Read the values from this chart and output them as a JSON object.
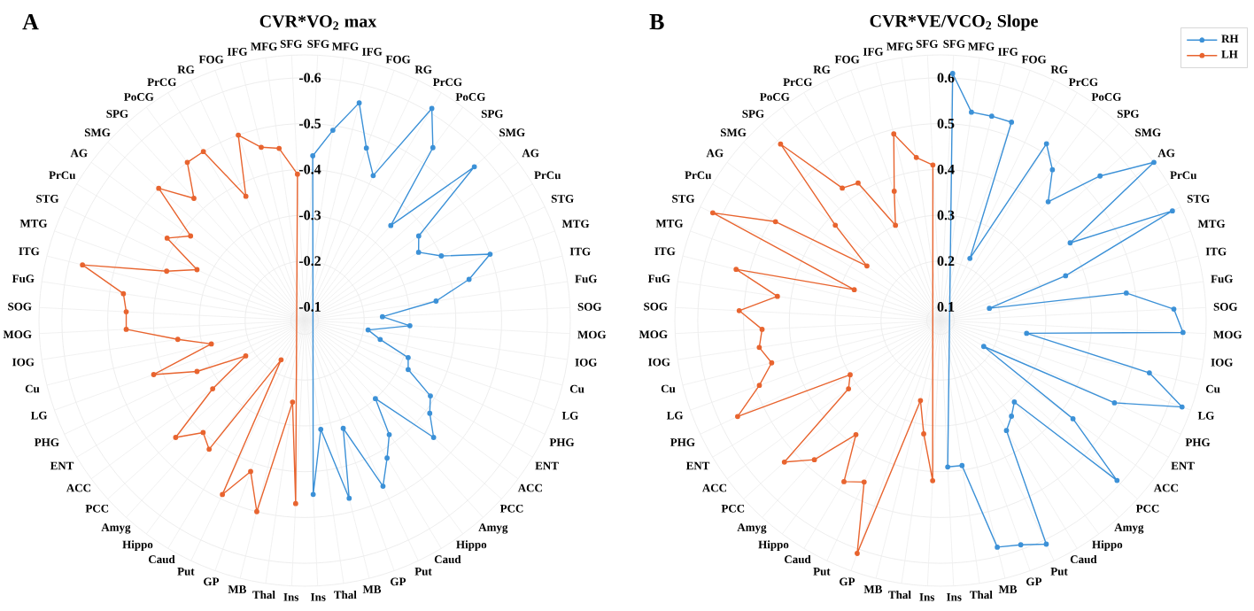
{
  "chart_data": [
    {
      "type": "radar",
      "title": "CVR*VO$_{2}$ max",
      "annotations": [
        "A"
      ],
      "categories": [
        "SFG",
        "MFG",
        "IFG",
        "FOG",
        "RG",
        "PrCG",
        "PoCG",
        "SPG",
        "SMG",
        "AG",
        "PrCu",
        "STG",
        "MTG",
        "ITG",
        "FuG",
        "SOG",
        "MOG",
        "IOG",
        "Cu",
        "LG",
        "PHG",
        "ENT",
        "ACC",
        "PCC",
        "Amyg",
        "Hippo",
        "Caud",
        "Put",
        "GP",
        "MB",
        "Thal",
        "Ins",
        "Ins",
        "Thal",
        "MB",
        "GP",
        "Put",
        "Caud",
        "Hippo",
        "Amyg",
        "PCC",
        "ACC",
        "ENT",
        "PHG",
        "LG",
        "Cu",
        "IOG",
        "MOG",
        "SOG",
        "FuG",
        "ITG",
        "MTG",
        "STG",
        "PrCu",
        "AG",
        "SMG",
        "SPG",
        "PoCG",
        "PrCG",
        "RG",
        "FOG",
        "IFG",
        "MFG",
        "SFG"
      ],
      "series": [
        {
          "color": "#3c91d7",
          "values": [
            -0.43,
            -0.49,
            -0.56,
            -0.47,
            -0.42,
            -0.61,
            -0.54,
            -0.35,
            -0.57,
            -0.38,
            -0.36,
            -0.4,
            -0.5,
            -0.44,
            -0.36,
            -0.24,
            -0.3,
            -0.21,
            -0.24,
            -0.31,
            -0.32,
            -0.39,
            -0.41,
            -0.45,
            -0.3,
            -0.38,
            -0.42,
            -0.47,
            -0.32,
            -0.47,
            -0.31,
            -0.45,
            null,
            null,
            null,
            null,
            null,
            null,
            null,
            null,
            null,
            null,
            null,
            null,
            null,
            null,
            null,
            null,
            null,
            null,
            null,
            null,
            null,
            null,
            null,
            null,
            null,
            null,
            null,
            null,
            null,
            null,
            null,
            null
          ]
        },
        {
          "color": "#e8642f",
          "values": [
            null,
            null,
            null,
            null,
            null,
            null,
            null,
            null,
            null,
            null,
            null,
            null,
            null,
            null,
            null,
            null,
            null,
            null,
            null,
            null,
            null,
            null,
            null,
            null,
            null,
            null,
            null,
            null,
            null,
            null,
            null,
            null,
            -0.47,
            -0.25,
            -0.5,
            -0.42,
            -0.49,
            -0.17,
            -0.42,
            -0.4,
            -0.45,
            -0.32,
            -0.22,
            -0.33,
            -0.42,
            -0.28,
            -0.35,
            -0.46,
            -0.46,
            -0.47,
            -0.57,
            -0.39,
            -0.33,
            -0.42,
            -0.38,
            -0.5,
            -0.43,
            -0.5,
            -0.5,
            -0.37,
            -0.5,
            -0.46,
            -0.45,
            -0.39
          ]
        }
      ],
      "ylim": [
        -0.07,
        -0.65
      ],
      "yticks": [
        -0.1,
        -0.2,
        -0.3,
        -0.4,
        -0.5,
        -0.6
      ],
      "grid": true,
      "marker": "circle"
    },
    {
      "type": "radar",
      "title": "CVR*VE/VCO$_{2}$ Slope",
      "annotations": [
        "B"
      ],
      "categories": [
        "SFG",
        "MFG",
        "IFG",
        "FOG",
        "RG",
        "PrCG",
        "PoCG",
        "SPG",
        "SMG",
        "AG",
        "PrCu",
        "STG",
        "MTG",
        "ITG",
        "FuG",
        "SOG",
        "MOG",
        "IOG",
        "Cu",
        "LG",
        "PHG",
        "ENT",
        "ACC",
        "PCC",
        "Amyg",
        "Hippo",
        "Caud",
        "Put",
        "GP",
        "MB",
        "Thal",
        "Ins",
        "Ins",
        "Thal",
        "MB",
        "GP",
        "Put",
        "Caud",
        "Hippo",
        "Amyg",
        "PCC",
        "ACC",
        "ENT",
        "PHG",
        "LG",
        "Cu",
        "IOG",
        "MOG",
        "SOG",
        "FuG",
        "ITG",
        "MTG",
        "STG",
        "PrCu",
        "AG",
        "SMG",
        "SPG",
        "PoCG",
        "PrCG",
        "RG",
        "FOG",
        "IFG",
        "MFG",
        "SFG"
      ],
      "series": [
        {
          "name": "RH",
          "color": "#3c91d7",
          "values": [
            0.61,
            0.53,
            0.53,
            0.53,
            0.22,
            0.52,
            0.48,
            0.42,
            0.54,
            0.65,
            0.4,
            0.63,
            0.36,
            0.18,
            0.48,
            0.58,
            0.6,
            0.26,
            0.54,
            0.63,
            0.49,
            0.18,
            0.43,
            0.59,
            0.31,
            0.33,
            0.35,
            0.61,
            0.59,
            0.58,
            0.39,
            0.39,
            null,
            null,
            null,
            null,
            null,
            null,
            null,
            null,
            null,
            null,
            null,
            null,
            null,
            null,
            null,
            null,
            null,
            null,
            null,
            null,
            null,
            null,
            null,
            null,
            null,
            null,
            null,
            null,
            null,
            null,
            null,
            null
          ]
        },
        {
          "name": "LH",
          "color": "#e8642f",
          "values": [
            null,
            null,
            null,
            null,
            null,
            null,
            null,
            null,
            null,
            null,
            null,
            null,
            null,
            null,
            null,
            null,
            null,
            null,
            null,
            null,
            null,
            null,
            null,
            null,
            null,
            null,
            null,
            null,
            null,
            null,
            null,
            null,
            0.42,
            0.32,
            0.25,
            0.61,
            0.46,
            0.48,
            0.38,
            0.48,
            0.53,
            0.32,
            0.3,
            0.56,
            0.49,
            0.45,
            0.47,
            0.46,
            0.51,
            0.43,
            0.53,
            0.27,
            0.62,
            0.49,
            0.27,
            0.38,
            0.59,
            0.43,
            0.42,
            0.3,
            0.37,
            0.49,
            0.43,
            0.41
          ]
        }
      ],
      "ylim": [
        0.07,
        0.65
      ],
      "yticks": [
        0.1,
        0.2,
        0.3,
        0.4,
        0.5,
        0.6
      ],
      "grid": true,
      "marker": "circle",
      "legend": "top right"
    }
  ]
}
